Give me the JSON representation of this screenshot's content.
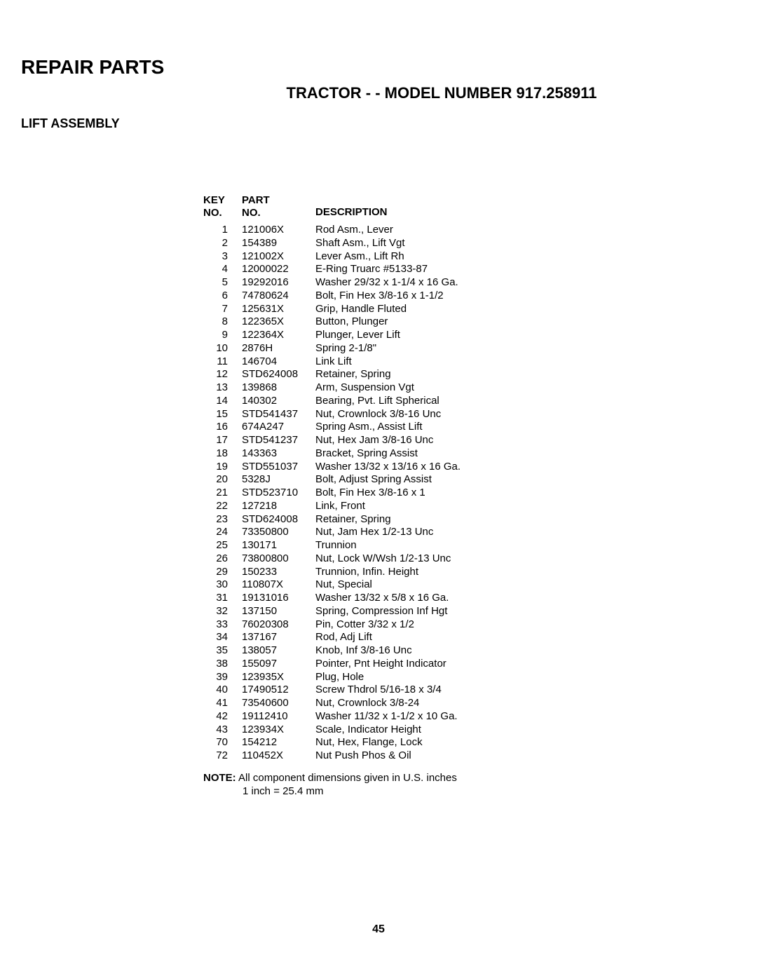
{
  "title": "REPAIR PARTS",
  "subtitle": "TRACTOR - - MODEL NUMBER 917.258911",
  "section": "LIFT ASSEMBLY",
  "headers": {
    "key_line1": "KEY",
    "key_line2": "NO.",
    "part_line1": "PART",
    "part_line2": "NO.",
    "description": "DESCRIPTION"
  },
  "rows": [
    {
      "key": "1",
      "part": "121006X",
      "desc": "Rod Asm., Lever"
    },
    {
      "key": "2",
      "part": "154389",
      "desc": "Shaft Asm., Lift Vgt"
    },
    {
      "key": "3",
      "part": "121002X",
      "desc": "Lever Asm., Lift Rh"
    },
    {
      "key": "4",
      "part": "12000022",
      "desc": "E-Ring Truarc #5133-87"
    },
    {
      "key": "5",
      "part": "19292016",
      "desc": "Washer 29/32 x 1-1/4 x 16 Ga."
    },
    {
      "key": "6",
      "part": "74780624",
      "desc": "Bolt, Fin Hex 3/8-16 x 1-1/2"
    },
    {
      "key": "7",
      "part": "125631X",
      "desc": "Grip, Handle Fluted"
    },
    {
      "key": "8",
      "part": "122365X",
      "desc": "Button, Plunger"
    },
    {
      "key": "9",
      "part": "122364X",
      "desc": "Plunger, Lever Lift"
    },
    {
      "key": "10",
      "part": "2876H",
      "desc": "Spring 2-1/8\""
    },
    {
      "key": "11",
      "part": "146704",
      "desc": "Link Lift"
    },
    {
      "key": "12",
      "part": "STD624008",
      "desc": "Retainer, Spring"
    },
    {
      "key": "13",
      "part": "139868",
      "desc": "Arm, Suspension Vgt"
    },
    {
      "key": "14",
      "part": "140302",
      "desc": "Bearing, Pvt. Lift Spherical"
    },
    {
      "key": "15",
      "part": "STD541437",
      "desc": "Nut, Crownlock 3/8-16 Unc"
    },
    {
      "key": "16",
      "part": "674A247",
      "desc": "Spring Asm., Assist Lift"
    },
    {
      "key": "17",
      "part": "STD541237",
      "desc": "Nut, Hex Jam 3/8-16 Unc"
    },
    {
      "key": "18",
      "part": "143363",
      "desc": "Bracket, Spring Assist"
    },
    {
      "key": "19",
      "part": "STD551037",
      "desc": "Washer 13/32 x 13/16 x 16 Ga."
    },
    {
      "key": "20",
      "part": "5328J",
      "desc": "Bolt, Adjust Spring Assist"
    },
    {
      "key": "21",
      "part": "STD523710",
      "desc": "Bolt, Fin Hex 3/8-16 x 1"
    },
    {
      "key": "22",
      "part": "127218",
      "desc": "Link, Front"
    },
    {
      "key": "23",
      "part": "STD624008",
      "desc": "Retainer, Spring"
    },
    {
      "key": "24",
      "part": "73350800",
      "desc": "Nut, Jam Hex 1/2-13 Unc"
    },
    {
      "key": "25",
      "part": "130171",
      "desc": "Trunnion"
    },
    {
      "key": "26",
      "part": "73800800",
      "desc": "Nut, Lock W/Wsh 1/2-13 Unc"
    },
    {
      "key": "29",
      "part": "150233",
      "desc": "Trunnion, Infin. Height"
    },
    {
      "key": "30",
      "part": "110807X",
      "desc": "Nut, Special"
    },
    {
      "key": "31",
      "part": "19131016",
      "desc": "Washer 13/32 x 5/8 x 16 Ga."
    },
    {
      "key": "32",
      "part": "137150",
      "desc": "Spring, Compression Inf Hgt"
    },
    {
      "key": "33",
      "part": "76020308",
      "desc": "Pin, Cotter 3/32 x 1/2"
    },
    {
      "key": "34",
      "part": "137167",
      "desc": "Rod, Adj Lift"
    },
    {
      "key": "35",
      "part": "138057",
      "desc": "Knob, Inf 3/8-16 Unc"
    },
    {
      "key": "38",
      "part": "155097",
      "desc": "Pointer, Pnt Height Indicator"
    },
    {
      "key": "39",
      "part": "123935X",
      "desc": "Plug, Hole"
    },
    {
      "key": "40",
      "part": "17490512",
      "desc": "Screw Thdrol 5/16-18 x 3/4"
    },
    {
      "key": "41",
      "part": "73540600",
      "desc": "Nut, Crownlock 3/8-24"
    },
    {
      "key": "42",
      "part": "19112410",
      "desc": "Washer 11/32 x 1-1/2 x 10 Ga."
    },
    {
      "key": "43",
      "part": "123934X",
      "desc": "Scale, Indicator Height"
    },
    {
      "key": "70",
      "part": "154212",
      "desc": "Nut, Hex, Flange, Lock"
    },
    {
      "key": "72",
      "part": "110452X",
      "desc": "Nut Push Phos & Oil"
    }
  ],
  "note": {
    "label": "NOTE:",
    "line1": "All component dimensions given in U.S. inches",
    "line2": "1 inch = 25.4 mm"
  },
  "page_number": "45"
}
